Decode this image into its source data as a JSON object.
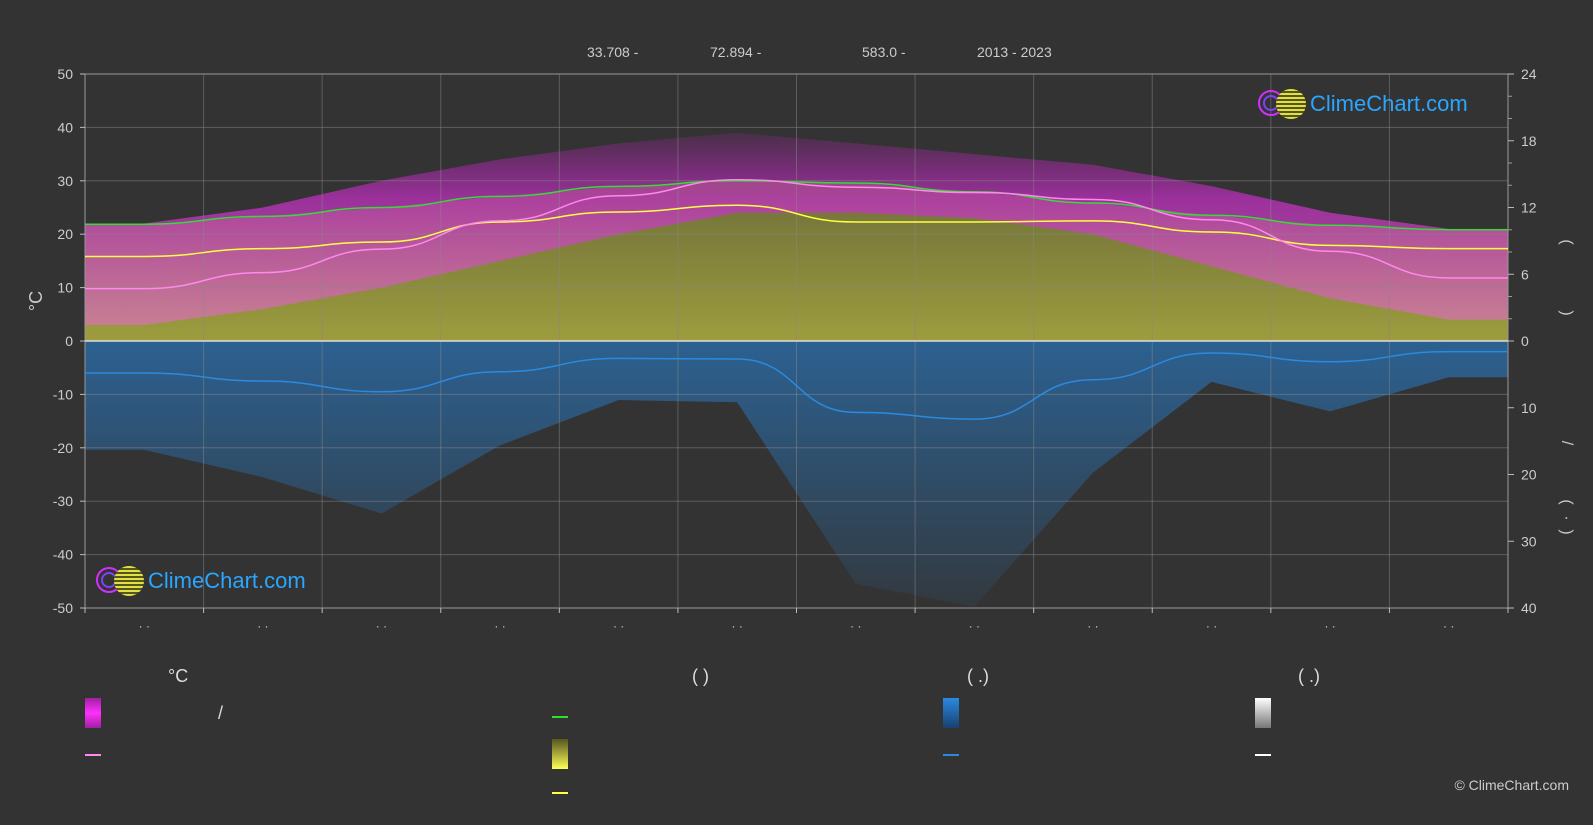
{
  "header": {
    "lat": "33.708 -",
    "lon": "72.894 -",
    "elev": "583.0 -",
    "years": "2013 - 2023"
  },
  "branding": {
    "logo_text": "ClimeChart.com",
    "copyright": "© ClimeChart.com"
  },
  "legend": {
    "col1_header": "°C",
    "col2_header": "(          )",
    "col3_header": "(   .)",
    "col4_header": "(   .)",
    "slash": "/"
  },
  "colors": {
    "background": "#333333",
    "magenta": "#e040e0",
    "pink": "#ff88ee",
    "yellow": "#ffff44",
    "green": "#33dd33",
    "blue": "#2a8ae0",
    "white": "#ffffff",
    "grid": "#888888"
  },
  "chart_data": {
    "type": "line",
    "x": [
      1,
      2,
      3,
      4,
      5,
      6,
      7,
      8,
      9,
      10,
      11,
      12
    ],
    "x_tick_labels": [
      "· ·",
      "· ·",
      "· ·",
      "· ·",
      "· ·",
      "· ·",
      "· ·",
      "· ·",
      "· ·",
      "· ·",
      "· ·",
      "· ·"
    ],
    "y_left_label": "°C",
    "y_left_lim": [
      -50,
      50
    ],
    "y_left_ticks": [
      50,
      40,
      30,
      20,
      10,
      0,
      -10,
      -20,
      -30,
      -40,
      -50
    ],
    "y_right_top_lim": [
      0,
      24
    ],
    "y_right_top_ticks": [
      24,
      18,
      12,
      6,
      0
    ],
    "y_right_bottom_lim": [
      0,
      40
    ],
    "y_right_bottom_ticks": [
      10,
      20,
      30,
      40
    ],
    "y_right_glyphs": [
      "(",
      ")",
      "/",
      "(",
      "·",
      ")"
    ],
    "grid": true,
    "series": [
      {
        "key": "daylight",
        "color": "#33dd33",
        "values": [
          10.5,
          11.2,
          12.0,
          13.0,
          13.9,
          14.4,
          14.2,
          13.4,
          12.4,
          11.3,
          10.4,
          10.0
        ]
      },
      {
        "key": "sunshine",
        "color": "#ffff44",
        "values": [
          7.6,
          8.3,
          8.9,
          10.7,
          11.6,
          12.2,
          10.7,
          10.7,
          10.8,
          9.8,
          8.6,
          8.3
        ]
      },
      {
        "key": "daily_max_temp",
        "color": "#ff88ee",
        "values": [
          9.8,
          12.8,
          17.2,
          22.5,
          27.2,
          30.2,
          28.8,
          27.8,
          26.5,
          22.7,
          16.8,
          11.8
        ]
      },
      {
        "key": "precipitation",
        "color": "#2a8ae0",
        "values": [
          4.8,
          6.0,
          7.6,
          4.6,
          2.6,
          2.7,
          10.7,
          11.7,
          5.8,
          1.8,
          3.1,
          1.6
        ]
      }
    ],
    "bands": {
      "temperature_max_top": [
        22,
        25,
        30,
        34,
        37,
        39,
        37,
        35,
        33,
        29,
        24,
        21
      ],
      "temperature_min_bottom": [
        3,
        6,
        10,
        15,
        20,
        24,
        24,
        23,
        20,
        14,
        8,
        4
      ]
    },
    "legend": [
      {
        "swatch": "gradient",
        "color": "#e040e0"
      },
      {
        "swatch": "line",
        "color": "#ff88ee"
      },
      {
        "swatch": "line",
        "color": "#33dd33"
      },
      {
        "swatch": "gradient",
        "color": "#e0e040"
      },
      {
        "swatch": "line",
        "color": "#ffff44"
      },
      {
        "swatch": "gradient",
        "color": "#2a8ae0"
      },
      {
        "swatch": "line",
        "color": "#2a8ae0"
      },
      {
        "swatch": "gradient",
        "color": "#eeeeee"
      },
      {
        "swatch": "line",
        "color": "#ffffff"
      }
    ]
  }
}
